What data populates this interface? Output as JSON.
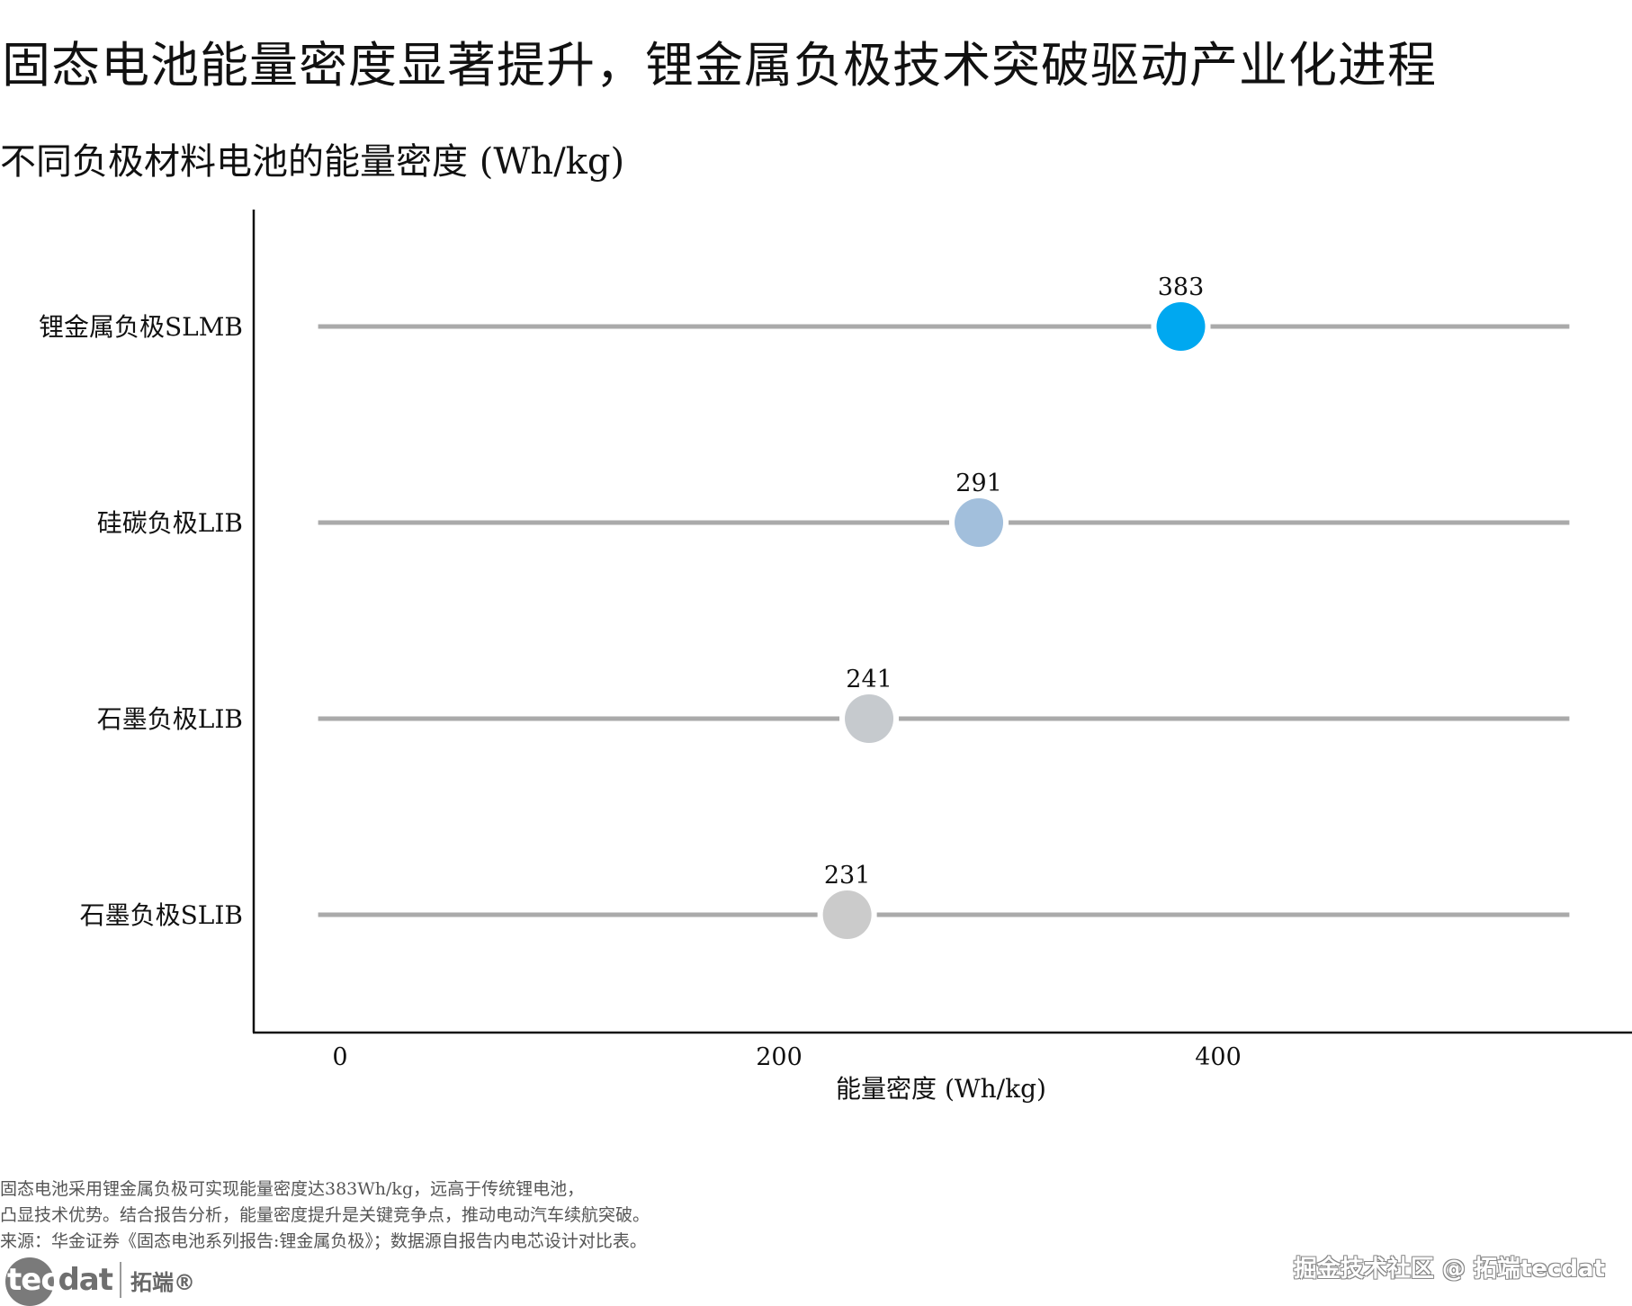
{
  "title": "固态电池能量密度显著提升，锂金属负极技术突破驱动产业化进程",
  "subtitle": "不同负极材料电池的能量密度 (Wh/kg)",
  "chart_data": {
    "type": "lollipop-dot",
    "categories": [
      "锂金属负极SLMB",
      "硅碳负极LIB",
      "石墨负极LIB",
      "石墨负极SLIB"
    ],
    "values": [
      383,
      291,
      241,
      231
    ],
    "colors": [
      "#00a8f0",
      "#a2bfdc",
      "#c6cace",
      "#cbcbcb"
    ],
    "value_labels": [
      "383",
      "291",
      "241",
      "231"
    ],
    "xlabel": "能量密度 (Wh/kg)",
    "xticks": [
      0,
      200,
      400
    ],
    "xtick_labels": [
      "0",
      "200",
      "400"
    ],
    "xlim": [
      -40,
      600
    ],
    "track_range": [
      -10,
      560
    ],
    "track_color": "#aaaaaa",
    "grid": false
  },
  "notes": [
    "固态电池采用锂金属负极可实现能量密度达383Wh/kg，远高于传统锂电池，",
    "凸显技术优势。结合报告分析，能量密度提升是关键竞争点，推动电动汽车续航突破。",
    "来源：华金证券《固态电池系列报告:锂金属负极》；数据源自报告内电芯设计对比表。"
  ],
  "brand": {
    "tec": "tec",
    "dat": "dat",
    "cn": "拓端®"
  },
  "watermark": "掘金技术社区 @ 拓端tecdat"
}
